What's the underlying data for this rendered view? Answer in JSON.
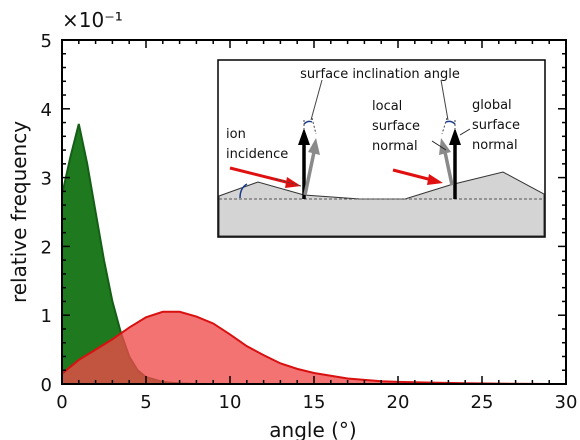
{
  "chart_data": {
    "type": "area",
    "xlabel": "angle (°)",
    "ylabel": "relative frequency",
    "y_multiplier_label": "×10⁻¹",
    "xlim": [
      0,
      30
    ],
    "ylim": [
      0,
      5
    ],
    "x_ticks": [
      0,
      5,
      10,
      15,
      20,
      25,
      30
    ],
    "x_tick_labels": [
      "0",
      "5",
      "10",
      "15",
      "20",
      "25",
      "30"
    ],
    "y_ticks": [
      0,
      1,
      2,
      3,
      4,
      5
    ],
    "y_tick_labels": [
      "0",
      "1",
      "2",
      "3",
      "4",
      "5"
    ],
    "series": [
      {
        "color": "#1f7a1f",
        "x": [
          0,
          0.5,
          1,
          1.5,
          2,
          2.5,
          3,
          3.5,
          4,
          4.5,
          5,
          6,
          7,
          8
        ],
        "y": [
          2.75,
          3.3,
          3.78,
          3.2,
          2.5,
          1.8,
          1.2,
          0.75,
          0.4,
          0.2,
          0.1,
          0.03,
          0.01,
          0
        ]
      },
      {
        "color": "#f04a4a",
        "x": [
          0,
          0.5,
          1,
          2,
          3,
          4,
          5,
          6,
          7,
          8,
          9,
          10,
          11,
          12,
          13,
          14,
          15,
          16,
          17,
          18,
          19,
          20,
          22,
          24,
          26,
          28,
          29
        ],
        "y": [
          0.15,
          0.25,
          0.35,
          0.5,
          0.65,
          0.82,
          0.97,
          1.05,
          1.05,
          0.98,
          0.88,
          0.72,
          0.55,
          0.42,
          0.3,
          0.22,
          0.16,
          0.12,
          0.08,
          0.06,
          0.04,
          0.03,
          0.02,
          0.01,
          0.005,
          0.002,
          0.0
        ]
      }
    ]
  },
  "inset": {
    "title": "surface inclination angle",
    "label_ion_1": "ion",
    "label_ion_2": "incidence",
    "label_local_1": "local",
    "label_local_2": "surface",
    "label_local_3": "normal",
    "label_global_1": "global",
    "label_global_2": "surface",
    "label_global_3": "normal"
  }
}
